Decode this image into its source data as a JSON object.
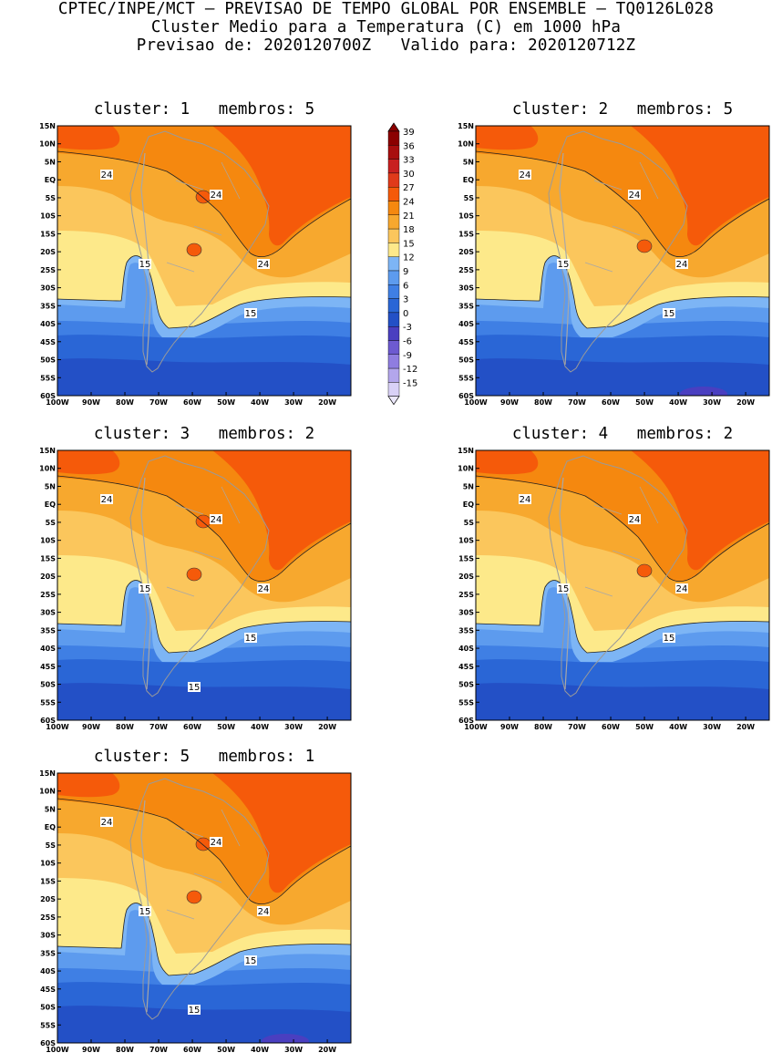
{
  "header": {
    "line1": "CPTEC/INPE/MCT – PREVISAO DE TEMPO GLOBAL POR ENSEMBLE – TQ0126L028",
    "line2": "Cluster Medio para a Temperatura (C) em 1000 hPa",
    "line3": "Previsao de: 2020120700Z   Valido para: 2020120712Z"
  },
  "axes": {
    "lat_labels": [
      "15N",
      "10N",
      "5N",
      "EQ",
      "5S",
      "10S",
      "15S",
      "20S",
      "25S",
      "30S",
      "35S",
      "40S",
      "45S",
      "50S",
      "55S",
      "60S"
    ],
    "lon_labels": [
      "100W",
      "90W",
      "80W",
      "70W",
      "60W",
      "50W",
      "40W",
      "30W",
      "20W"
    ],
    "lat_range": [
      15,
      -60
    ],
    "lon_range": [
      -100,
      -13
    ]
  },
  "colorbar": {
    "labels": [
      "39",
      "36",
      "33",
      "30",
      "27",
      "24",
      "21",
      "18",
      "15",
      "12",
      "9",
      "6",
      "3",
      "0",
      "-3",
      "-6",
      "-9",
      "-12",
      "-15"
    ],
    "colors": [
      "#8b0000",
      "#a80e0e",
      "#c82020",
      "#e03a1a",
      "#f55a0a",
      "#f5880f",
      "#f7a82e",
      "#fbc65c",
      "#fde98a",
      "#7db5f5",
      "#5d9bee",
      "#3f7fe4",
      "#2a66d6",
      "#2350c6",
      "#4a3fc0",
      "#6d5ad0",
      "#8f7de0",
      "#b3a6ec",
      "#d9d1f7"
    ]
  },
  "panels": [
    {
      "title": "cluster: 1   membros: 5",
      "labels": [
        {
          "text": "24"
        },
        {
          "text": "24"
        },
        {
          "text": "24"
        },
        {
          "text": "15"
        },
        {
          "text": "15"
        }
      ]
    },
    {
      "title": "cluster: 2   membros: 5",
      "labels": [
        {
          "text": "24"
        },
        {
          "text": "24"
        },
        {
          "text": "24"
        },
        {
          "text": "15"
        },
        {
          "text": "15"
        }
      ]
    },
    {
      "title": "cluster: 3   membros: 2",
      "labels": [
        {
          "text": "24"
        },
        {
          "text": "24"
        },
        {
          "text": "24"
        },
        {
          "text": "15"
        },
        {
          "text": "15"
        },
        {
          "text": "15"
        }
      ]
    },
    {
      "title": "cluster: 4   membros: 2",
      "labels": [
        {
          "text": "24"
        },
        {
          "text": "24"
        },
        {
          "text": "24"
        },
        {
          "text": "15"
        },
        {
          "text": "15"
        }
      ]
    },
    {
      "title": "cluster: 5   membros: 1",
      "labels": [
        {
          "text": "24"
        },
        {
          "text": "24"
        },
        {
          "text": "24"
        },
        {
          "text": "15"
        },
        {
          "text": "15"
        },
        {
          "text": "15"
        }
      ]
    }
  ]
}
